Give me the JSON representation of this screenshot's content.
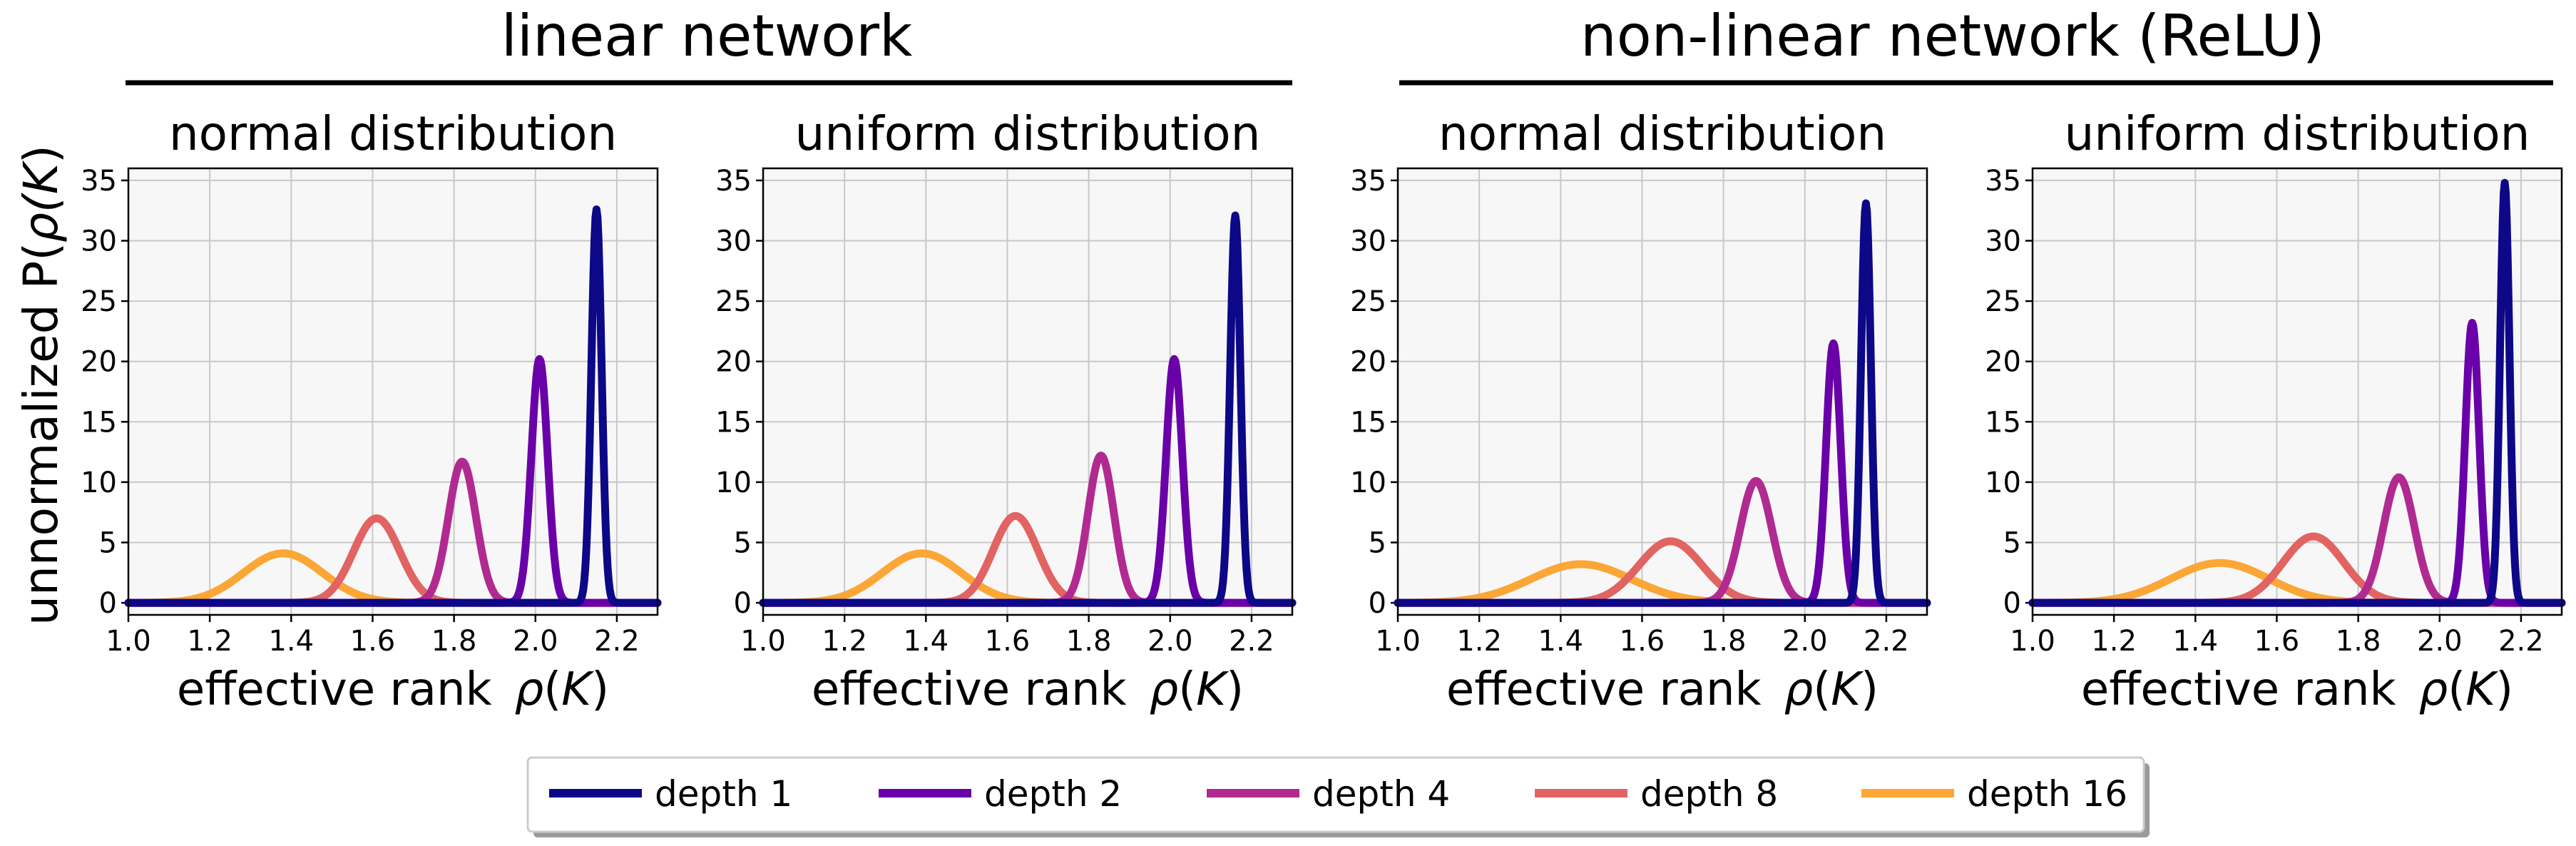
{
  "groups": [
    {
      "title": "linear network"
    },
    {
      "title": "non-linear network (ReLU)"
    }
  ],
  "ylabel_prefix": "unnormalized P(",
  "ylabel_symbol": "ρ",
  "ylabel_arg": "K",
  "ylabel_suffix": ")",
  "xlabel_text": "effective rank",
  "xlabel_symbol": "ρ",
  "xlabel_arg": "K",
  "legend": {
    "entries": [
      {
        "label": "depth 1",
        "color": "#0d0887"
      },
      {
        "label": "depth 2",
        "color": "#6a00a8"
      },
      {
        "label": "depth 4",
        "color": "#b12a90"
      },
      {
        "label": "depth 8",
        "color": "#e16462"
      },
      {
        "label": "depth 16",
        "color": "#fca636"
      }
    ]
  },
  "chart_data": [
    {
      "type": "line",
      "title": "normal distribution",
      "xlim": [
        1.0,
        2.3
      ],
      "ylim": [
        -1,
        36
      ],
      "xticks": [
        1.0,
        1.2,
        1.4,
        1.6,
        1.8,
        2.0,
        2.2
      ],
      "yticks": [
        0,
        5,
        10,
        15,
        20,
        25,
        30,
        35
      ],
      "grid": true,
      "series": [
        {
          "name": "depth 16",
          "peak_x": 1.38,
          "peak_y": 4.1,
          "sigma": 0.097
        },
        {
          "name": "depth 8",
          "peak_x": 1.61,
          "peak_y": 7.0,
          "sigma": 0.057
        },
        {
          "name": "depth 4",
          "peak_x": 1.82,
          "peak_y": 11.7,
          "sigma": 0.034
        },
        {
          "name": "depth 2",
          "peak_x": 2.01,
          "peak_y": 20.2,
          "sigma": 0.02
        },
        {
          "name": "depth 1",
          "peak_x": 2.15,
          "peak_y": 32.6,
          "sigma": 0.0125
        }
      ]
    },
    {
      "type": "line",
      "title": "uniform distribution",
      "xlim": [
        1.0,
        2.3
      ],
      "ylim": [
        -1,
        36
      ],
      "xticks": [
        1.0,
        1.2,
        1.4,
        1.6,
        1.8,
        2.0,
        2.2
      ],
      "yticks": [
        0,
        5,
        10,
        15,
        20,
        25,
        30,
        35
      ],
      "grid": true,
      "series": [
        {
          "name": "depth 16",
          "peak_x": 1.39,
          "peak_y": 4.1,
          "sigma": 0.097
        },
        {
          "name": "depth 8",
          "peak_x": 1.62,
          "peak_y": 7.2,
          "sigma": 0.055
        },
        {
          "name": "depth 4",
          "peak_x": 1.83,
          "peak_y": 12.2,
          "sigma": 0.032
        },
        {
          "name": "depth 2",
          "peak_x": 2.01,
          "peak_y": 20.2,
          "sigma": 0.02
        },
        {
          "name": "depth 1",
          "peak_x": 2.16,
          "peak_y": 32.1,
          "sigma": 0.0125
        }
      ]
    },
    {
      "type": "line",
      "title": "normal distribution",
      "xlim": [
        1.0,
        2.3
      ],
      "ylim": [
        -1,
        36
      ],
      "xticks": [
        1.0,
        1.2,
        1.4,
        1.6,
        1.8,
        2.0,
        2.2
      ],
      "yticks": [
        0,
        5,
        10,
        15,
        20,
        25,
        30,
        35
      ],
      "grid": true,
      "series": [
        {
          "name": "depth 16",
          "peak_x": 1.45,
          "peak_y": 3.2,
          "sigma": 0.125
        },
        {
          "name": "depth 8",
          "peak_x": 1.67,
          "peak_y": 5.1,
          "sigma": 0.078
        },
        {
          "name": "depth 4",
          "peak_x": 1.88,
          "peak_y": 10.1,
          "sigma": 0.039
        },
        {
          "name": "depth 2",
          "peak_x": 2.07,
          "peak_y": 21.5,
          "sigma": 0.018
        },
        {
          "name": "depth 1",
          "peak_x": 2.15,
          "peak_y": 33.1,
          "sigma": 0.012
        }
      ]
    },
    {
      "type": "line",
      "title": "uniform distribution",
      "xlim": [
        1.0,
        2.3
      ],
      "ylim": [
        -1,
        36
      ],
      "xticks": [
        1.0,
        1.2,
        1.4,
        1.6,
        1.8,
        2.0,
        2.2
      ],
      "yticks": [
        0,
        5,
        10,
        15,
        20,
        25,
        30,
        35
      ],
      "grid": true,
      "series": [
        {
          "name": "depth 16",
          "peak_x": 1.46,
          "peak_y": 3.3,
          "sigma": 0.12
        },
        {
          "name": "depth 8",
          "peak_x": 1.69,
          "peak_y": 5.5,
          "sigma": 0.075
        },
        {
          "name": "depth 4",
          "peak_x": 1.9,
          "peak_y": 10.4,
          "sigma": 0.038
        },
        {
          "name": "depth 2",
          "peak_x": 2.08,
          "peak_y": 23.2,
          "sigma": 0.017
        },
        {
          "name": "depth 1",
          "peak_x": 2.16,
          "peak_y": 34.8,
          "sigma": 0.0115
        }
      ]
    }
  ]
}
